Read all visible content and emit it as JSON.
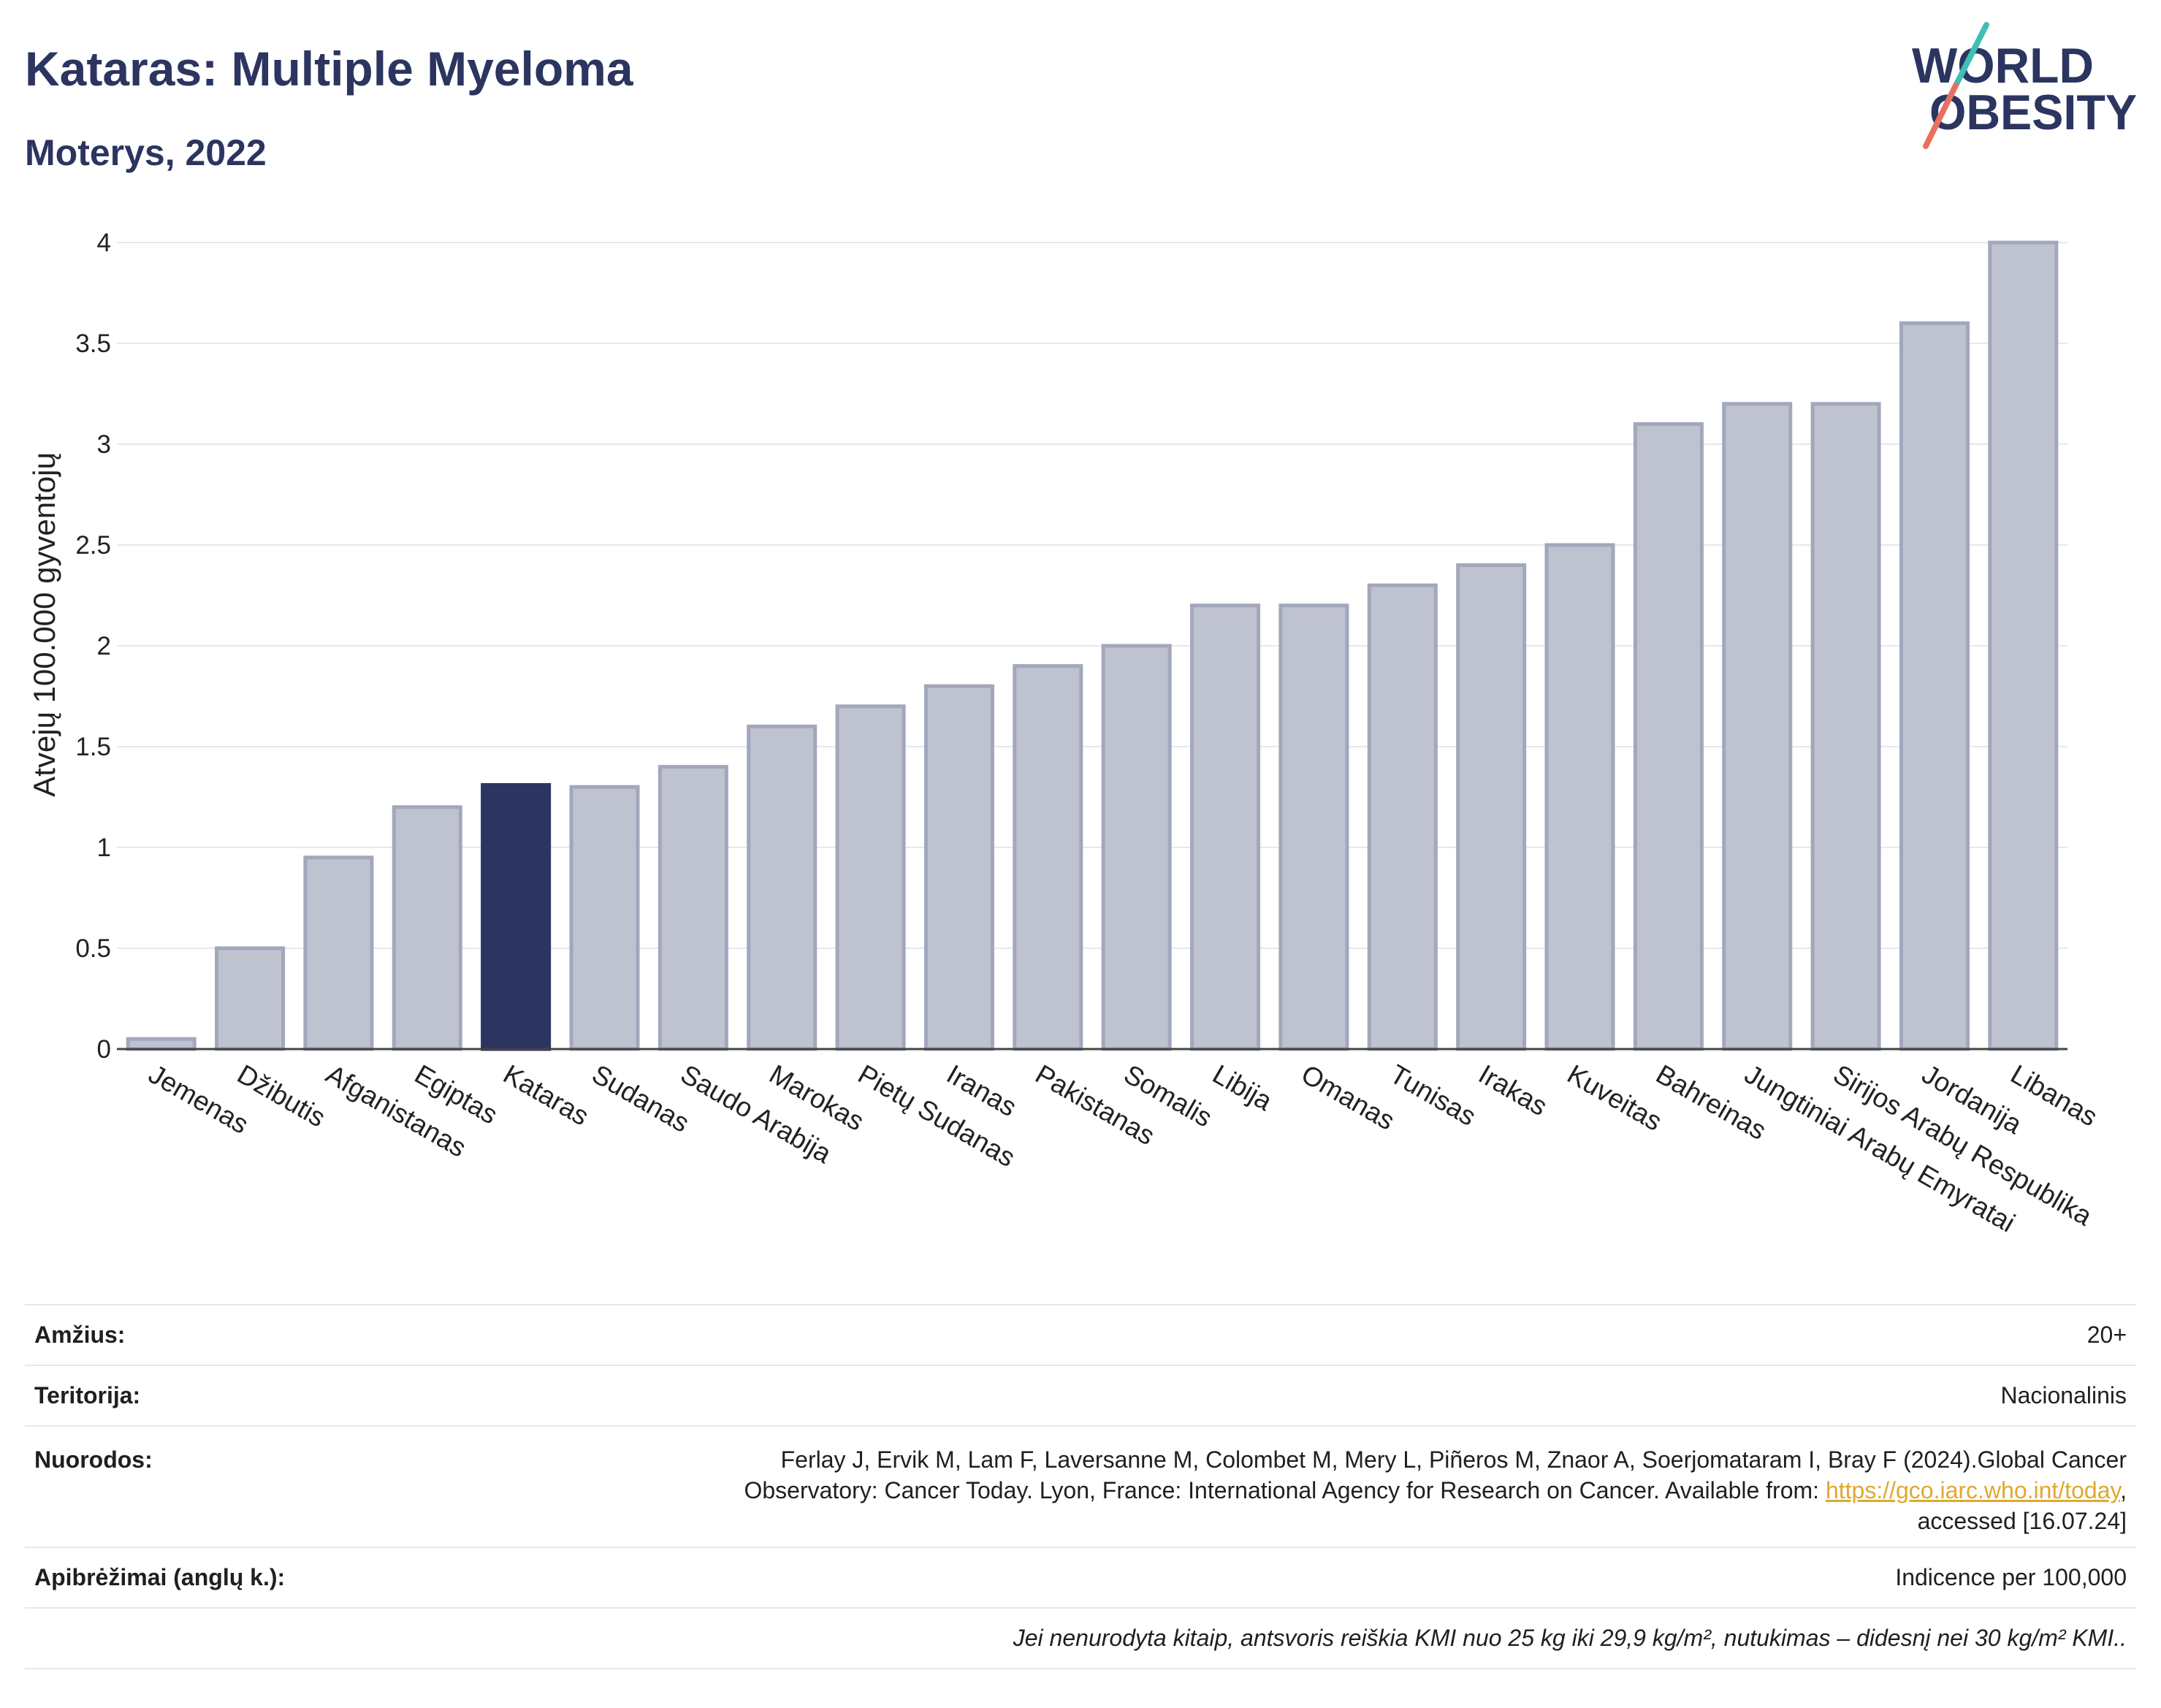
{
  "logo": {
    "line1": "WORLD",
    "line2": "OBESITY"
  },
  "colors": {
    "title": "#2b3560",
    "bar": "#bfc2cf",
    "bar_border": "#a2a7bc",
    "highlight": "#2b3560",
    "gridline": "#e6e8ef",
    "zero_line": "#444444",
    "link": "#e0a82e",
    "logo_teal": "#3fbfb5",
    "logo_salmon": "#e8705f"
  },
  "chart_data": {
    "type": "bar",
    "title": "Kataras: Multiple Myeloma",
    "subtitle": "Moterys, 2022",
    "ylabel": "Atvejų 100.000 gyventojų",
    "categories": [
      "Jemenas",
      "Džibutis",
      "Afganistanas",
      "Egiptas",
      "Kataras",
      "Sudanas",
      "Saudo Arabija",
      "Marokas",
      "Pietų Sudanas",
      "Iranas",
      "Pakistanas",
      "Somalis",
      "Libija",
      "Omanas",
      "Tunisas",
      "Irakas",
      "Kuveitas",
      "Bahreinas",
      "Jungtiniai Arabų Emyratai",
      "Sirijos Arabų Respublika",
      "Jordanija",
      "Libanas"
    ],
    "values": [
      0.05,
      0.5,
      0.95,
      1.2,
      1.31,
      1.3,
      1.4,
      1.6,
      1.7,
      1.8,
      1.9,
      2.0,
      2.2,
      2.2,
      2.3,
      2.4,
      2.5,
      3.1,
      3.2,
      3.2,
      3.6,
      4.0
    ],
    "highlight_index": 4,
    "ylim": [
      0,
      4
    ],
    "yticks": [
      0,
      0.5,
      1,
      1.5,
      2,
      2.5,
      3,
      3.5,
      4
    ],
    "grid": true
  },
  "info": {
    "age_label": "Amžius:",
    "age_value": "20+",
    "territory_label": "Teritorija:",
    "territory_value": "Nacionalinis",
    "references_label": "Nuorodos:",
    "references_line1": "Ferlay J, Ervik M, Lam F, Laversanne M, Colombet M, Mery L, Piñeros M, Znaor A, Soerjomataram I, Bray F (2024).Global Cancer",
    "references_line2": "Observatory: Cancer Today. Lyon, France: International Agency for Research on Cancer. Available from: ",
    "references_link": "https://gco.iarc.who.int/today",
    "references_line2_end": ",",
    "references_line3": "accessed [16.07.24]",
    "definitions_label": "Apibrėžimai (anglų k.):",
    "definitions_value": "Indicence per 100,000",
    "note": "Jei nenurodyta kitaip, antsvoris reiškia KMI nuo 25 kg iki 29,9 kg/m², nutukimas – didesnį nei 30 kg/m² KMI.."
  }
}
